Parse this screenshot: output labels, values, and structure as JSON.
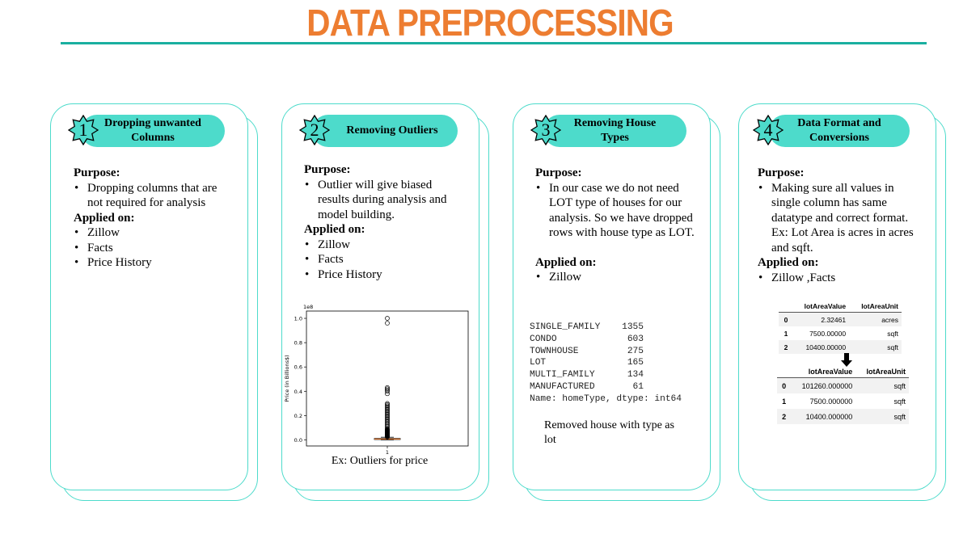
{
  "title": "DATA PREPROCESSING",
  "colors": {
    "title": "#ED7D31",
    "accent": "#4DDBCB",
    "rule": "#1AAFA0"
  },
  "cards": [
    {
      "number": "1",
      "heading": [
        "Dropping unwanted",
        "Columns"
      ],
      "purpose_label": "Purpose:",
      "purpose": [
        "Dropping columns that are not required for analysis"
      ],
      "applied_label": "Applied on:",
      "applied": [
        "Zillow",
        "Facts",
        "Price History"
      ]
    },
    {
      "number": "2",
      "heading": [
        "Removing Outliers"
      ],
      "purpose_label": "Purpose:",
      "purpose": [
        "Outlier will give biased results during analysis and model building."
      ],
      "applied_label": "Applied on:",
      "applied": [
        "Zillow",
        "Facts",
        "Price History"
      ],
      "caption": "Ex: Outliers for price"
    },
    {
      "number": "3",
      "heading": [
        "Removing House",
        "Types"
      ],
      "purpose_label": "Purpose:",
      "purpose": [
        "In our case we do not need LOT type of houses for our analysis. So we have dropped rows with house type as LOT."
      ],
      "applied_label": "Applied on:",
      "applied": [
        "Zillow"
      ],
      "output": [
        "SINGLE_FAMILY    1355",
        "CONDO             603",
        "TOWNHOUSE         275",
        "LOT               165",
        "MULTI_FAMILY      134",
        "MANUFACTURED       61",
        "Name: homeType, dtype: int64"
      ],
      "caption": "Removed house with type as lot"
    },
    {
      "number": "4",
      "heading": [
        "Data Format and",
        "Conversions"
      ],
      "purpose_label": "Purpose:",
      "purpose": [
        "Making sure all values in single column has same datatype and correct format. Ex: Lot Area is acres in acres and sqft."
      ],
      "applied_label": "Applied on:",
      "applied": [
        "Zillow ,Facts"
      ],
      "table_before": {
        "columns": [
          "",
          "lotAreaValue",
          "lotAreaUnit"
        ],
        "rows": [
          [
            "0",
            "2.32461",
            "acres"
          ],
          [
            "1",
            "7500.00000",
            "sqft"
          ],
          [
            "2",
            "10400.00000",
            "sqft"
          ]
        ]
      },
      "table_after": {
        "columns": [
          "",
          "lotAreaValue",
          "lotAreaUnit"
        ],
        "rows": [
          [
            "0",
            "101260.000000",
            "sqft"
          ],
          [
            "1",
            "7500.000000",
            "sqft"
          ],
          [
            "2",
            "10400.000000",
            "sqft"
          ]
        ]
      }
    }
  ],
  "chart_data": {
    "type": "box",
    "scale_label": "1e8",
    "ylabel": "Price (in Billions$)",
    "yticks": [
      "0.0",
      "0.2",
      "0.4",
      "0.6",
      "0.8",
      "1.0"
    ],
    "xticks": [
      "1"
    ],
    "ylim": [
      -0.05,
      1.06
    ],
    "box": {
      "q1": 0.003,
      "median": 0.007,
      "q3": 0.012,
      "whisker_low": 0,
      "whisker_high": 0.022
    },
    "outliers": [
      1.0,
      0.96,
      0.43,
      0.42,
      0.41,
      0.4,
      0.38,
      0.3,
      0.29,
      0.28,
      0.27,
      0.26,
      0.25,
      0.24,
      0.23,
      0.22,
      0.21,
      0.2,
      0.19,
      0.18,
      0.17,
      0.16,
      0.15,
      0.14,
      0.13,
      0.12,
      0.11,
      0.1,
      0.09,
      0.08,
      0.07,
      0.06,
      0.05,
      0.045,
      0.04,
      0.035,
      0.03,
      0.026
    ]
  }
}
